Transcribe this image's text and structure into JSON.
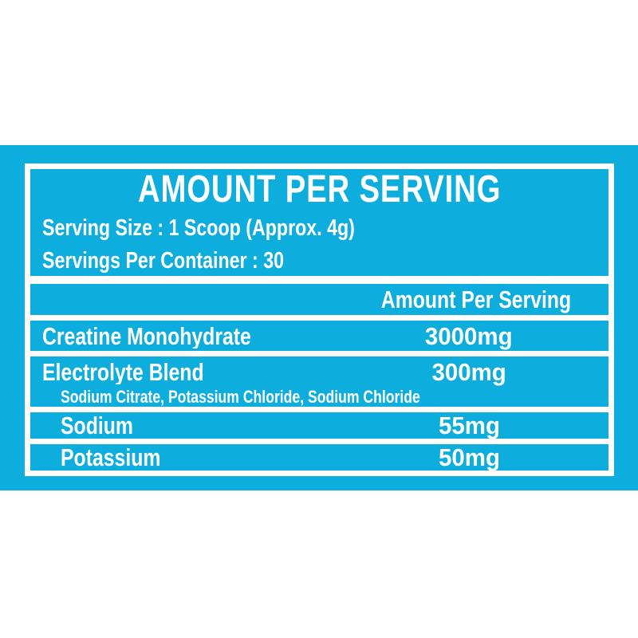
{
  "label": {
    "title": "AMOUNT PER SERVING",
    "serving_size_line": "Serving Size : 1 Scoop (Approx. 4g)",
    "servings_per_container_line": "Servings Per Container : 30",
    "table": {
      "amount_header": "Amount Per Serving",
      "rows": [
        {
          "name": "Creatine Monohydrate",
          "amount": "3000mg"
        },
        {
          "name": "Electrolyte Blend",
          "amount": "300mg",
          "sub_ingredients": "Sodium Citrate, Potassium Chloride, Sodium Chloride"
        },
        {
          "name": "Sodium",
          "amount": "55mg"
        },
        {
          "name": "Potassium",
          "amount": "50mg"
        }
      ]
    },
    "colors": {
      "panel_cyan": "#0dadde",
      "rule_white": "#ffffff",
      "text_white": "#ffffff",
      "page_background": "#ffffff"
    }
  }
}
